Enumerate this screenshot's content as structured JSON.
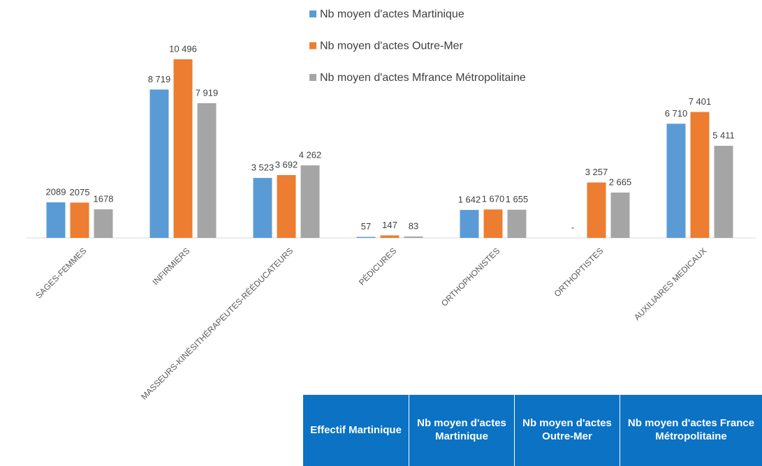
{
  "chart_data": {
    "type": "bar",
    "categories": [
      "SAGES-FEMMES",
      "INFIRMIERS",
      "MASSEURS-KINÉSITHÉRAPEUTES-RÉÉDUCATEURS",
      "PÉDICURES",
      "ORTHOPHONISTES",
      "ORTHOPTISTES",
      "AUXILIAIRES MEDICAUX"
    ],
    "series": [
      {
        "name": "Nb moyen d'actes Martinique",
        "color": "#5b9bd5",
        "values": [
          2089,
          8719,
          3523,
          57,
          1642,
          null,
          6710
        ],
        "value_labels": [
          "2089",
          "8 719",
          "3 523",
          "57",
          "1 642",
          "-",
          "6 710"
        ]
      },
      {
        "name": "Nb moyen d'actes Outre-Mer",
        "color": "#ed7d31",
        "values": [
          2075,
          10496,
          3692,
          147,
          1670,
          3257,
          7401
        ],
        "value_labels": [
          "2075",
          "10 496",
          "3 692",
          "147",
          "1 670",
          "3 257",
          "7 401"
        ]
      },
      {
        "name": "Nb moyen d'actes Mfrance Métropolitaine",
        "color": "#a5a5a5",
        "values": [
          1678,
          7919,
          4262,
          83,
          1655,
          2665,
          5411
        ],
        "value_labels": [
          "1678",
          "7 919",
          "4 262",
          "83",
          "1 655",
          "2 665",
          "5 411"
        ]
      }
    ],
    "legend": "top"
  },
  "table": {
    "header": [
      "Effectif Martinique",
      "Nb moyen d'actes Martinique",
      "Nb moyen d'actes Outre-Mer",
      "Nb moyen d'actes France Métropolitaine"
    ]
  }
}
